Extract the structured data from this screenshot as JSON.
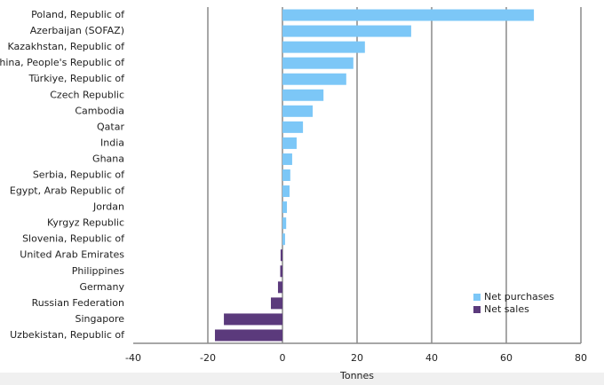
{
  "chart_data": {
    "type": "barh",
    "xlabel": "Tonnes",
    "categories": [
      "Poland, Republic of",
      "Azerbaijan (SOFAZ)",
      "Kazakhstan, Republic of",
      "China, People's Republic of",
      "Türkiye, Republic of",
      "Czech Republic",
      "Cambodia",
      "Qatar",
      "India",
      "Ghana",
      "Serbia, Republic of",
      "Egypt, Arab Republic of",
      "Jordan",
      "Kyrgyz Republic",
      "Slovenia, Republic of",
      "United Arab Emirates",
      "Philippines",
      "Germany",
      "Russian Federation",
      "Singapore",
      "Uzbekistan, Republic of"
    ],
    "series": [
      {
        "name": "Net purchases",
        "color": "#7cc7f7",
        "values": [
          67.4,
          34.5,
          22.1,
          19.0,
          17.1,
          11.0,
          8.1,
          5.5,
          3.8,
          2.6,
          2.1,
          1.9,
          1.2,
          1.0,
          0.7,
          null,
          null,
          null,
          null,
          null,
          null
        ]
      },
      {
        "name": "Net sales",
        "color": "#5b3a7c",
        "values": [
          null,
          null,
          null,
          null,
          null,
          null,
          null,
          null,
          null,
          null,
          null,
          null,
          null,
          null,
          null,
          -0.5,
          -0.6,
          -1.2,
          -3.1,
          -15.7,
          -18.1
        ]
      }
    ],
    "xlim": [
      -40,
      80
    ],
    "xticks": [
      -40,
      -20,
      0,
      20,
      40,
      60,
      80
    ],
    "grid": true,
    "legend": "lower right"
  }
}
